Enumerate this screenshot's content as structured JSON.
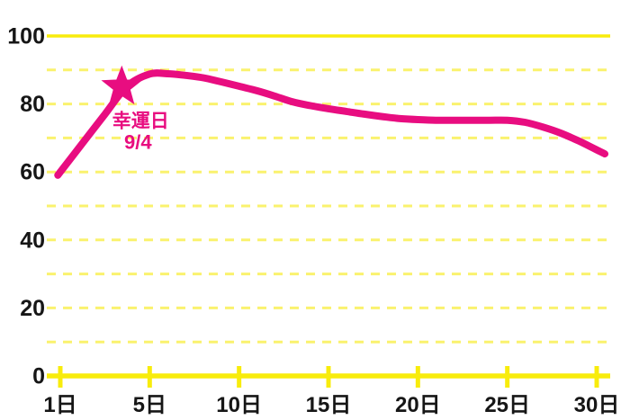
{
  "colors": {
    "line_pink": "#E80D80",
    "axis_yellow": "#F8EC0C",
    "grid_yellow": "#FAF26E",
    "text_black": "#161616",
    "background": "#FFFFFF"
  },
  "chart_data": {
    "type": "line",
    "title": "",
    "xlabel": "",
    "ylabel": "",
    "ylim": [
      0,
      100
    ],
    "grid": "horizontal dashed yellow lines",
    "grid_step": 10,
    "y_tick_values": [
      100,
      80,
      60,
      40,
      20,
      0
    ],
    "y_tick_labels": [
      "100",
      "80",
      "60",
      "40",
      "20",
      "0"
    ],
    "x_tick_days": [
      1,
      5,
      10,
      15,
      20,
      25,
      30
    ],
    "x_tick_labels": [
      "1日",
      "5日",
      "10日",
      "15日",
      "20日",
      "25日",
      "30日"
    ],
    "series": [
      {
        "points": [
          [
            1,
            60
          ],
          [
            2,
            68.5
          ],
          [
            3,
            77
          ],
          [
            4,
            85.3
          ],
          [
            5,
            88.8
          ],
          [
            6,
            88.9
          ],
          [
            7,
            88.4
          ],
          [
            8,
            87.7
          ],
          [
            9,
            86.5
          ],
          [
            10,
            85.2
          ],
          [
            11,
            83.9
          ],
          [
            12,
            82.3
          ],
          [
            13,
            80.6
          ],
          [
            14,
            79.5
          ],
          [
            15,
            78.6
          ],
          [
            16,
            77.8
          ],
          [
            17,
            77
          ],
          [
            18,
            76.3
          ],
          [
            19,
            75.7
          ],
          [
            20,
            75.4
          ],
          [
            21,
            75.2
          ],
          [
            22,
            75.2
          ],
          [
            23,
            75.2
          ],
          [
            24,
            75.2
          ],
          [
            25,
            75.2
          ],
          [
            26,
            74.6
          ],
          [
            27,
            73.2
          ],
          [
            28,
            71.4
          ],
          [
            29,
            69.1
          ],
          [
            30,
            66.5
          ]
        ]
      }
    ],
    "annotation": {
      "marker": "star",
      "day": 3.75,
      "value": 85,
      "line1": "幸運日",
      "line2": "9/4"
    }
  }
}
